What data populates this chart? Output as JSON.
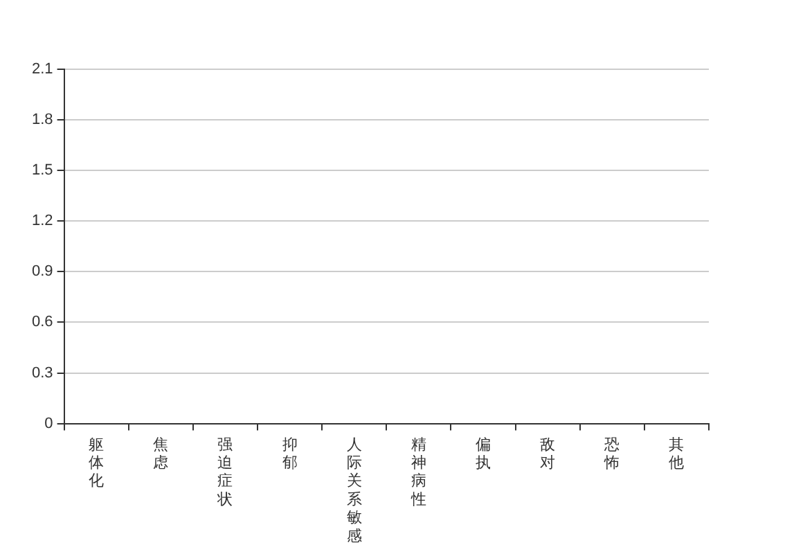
{
  "chart_data": {
    "type": "bar",
    "categories": [
      "躯体化",
      "焦虑",
      "强迫症状",
      "抑郁",
      "人际关系敏感",
      "精神病性",
      "偏执",
      "敌对",
      "恐怖",
      "其他"
    ],
    "values": [
      0,
      0,
      0,
      0,
      0,
      0,
      0,
      0,
      0,
      0
    ],
    "ylim": [
      0,
      2.1
    ],
    "yticks": [
      0,
      0.3,
      0.6,
      0.9,
      1.2,
      1.5,
      1.8,
      2.1
    ],
    "grid": "y"
  }
}
